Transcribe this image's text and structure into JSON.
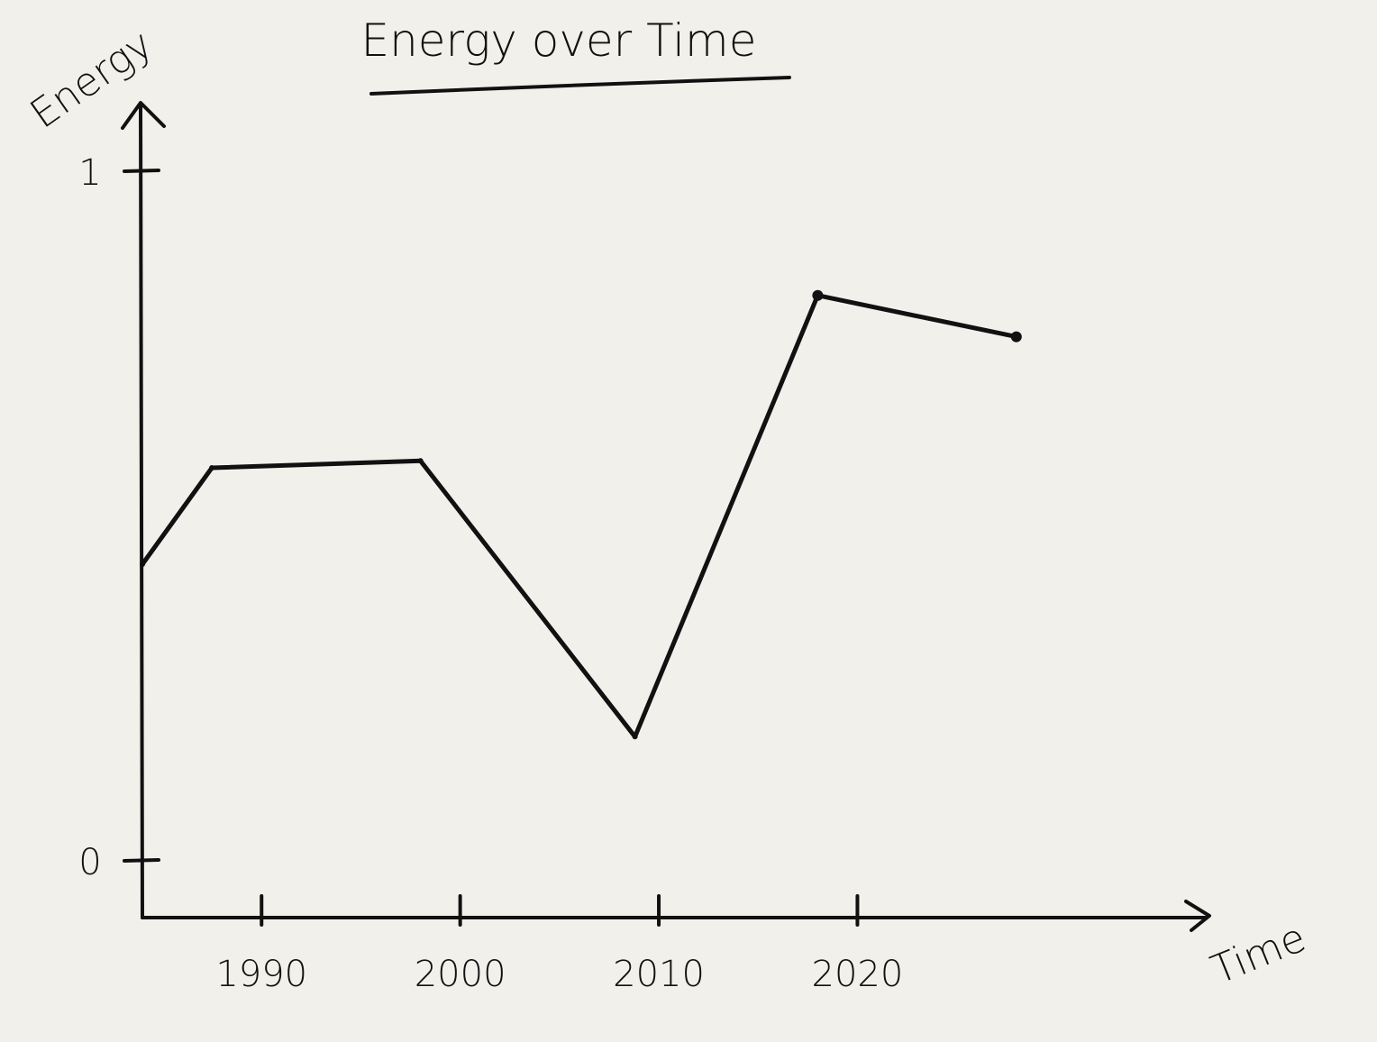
{
  "chart_data": {
    "type": "line",
    "title": "Energy over Time",
    "xlabel": "Time",
    "ylabel": "Energy",
    "x_ticks": [
      "1990",
      "2000",
      "2010",
      "2020"
    ],
    "y_ticks": [
      "0",
      "1"
    ],
    "xlim": [
      1984,
      2038
    ],
    "ylim": [
      0,
      1
    ],
    "grid": false,
    "series": [
      {
        "x": [
          1984,
          1987.5,
          1998,
          2008.8,
          2018,
          2028
        ],
        "y": [
          0.43,
          0.57,
          0.58,
          0.18,
          0.82,
          0.76
        ]
      }
    ],
    "colors": {
      "ink": "#111111",
      "paper": "#f2f0eb"
    }
  }
}
